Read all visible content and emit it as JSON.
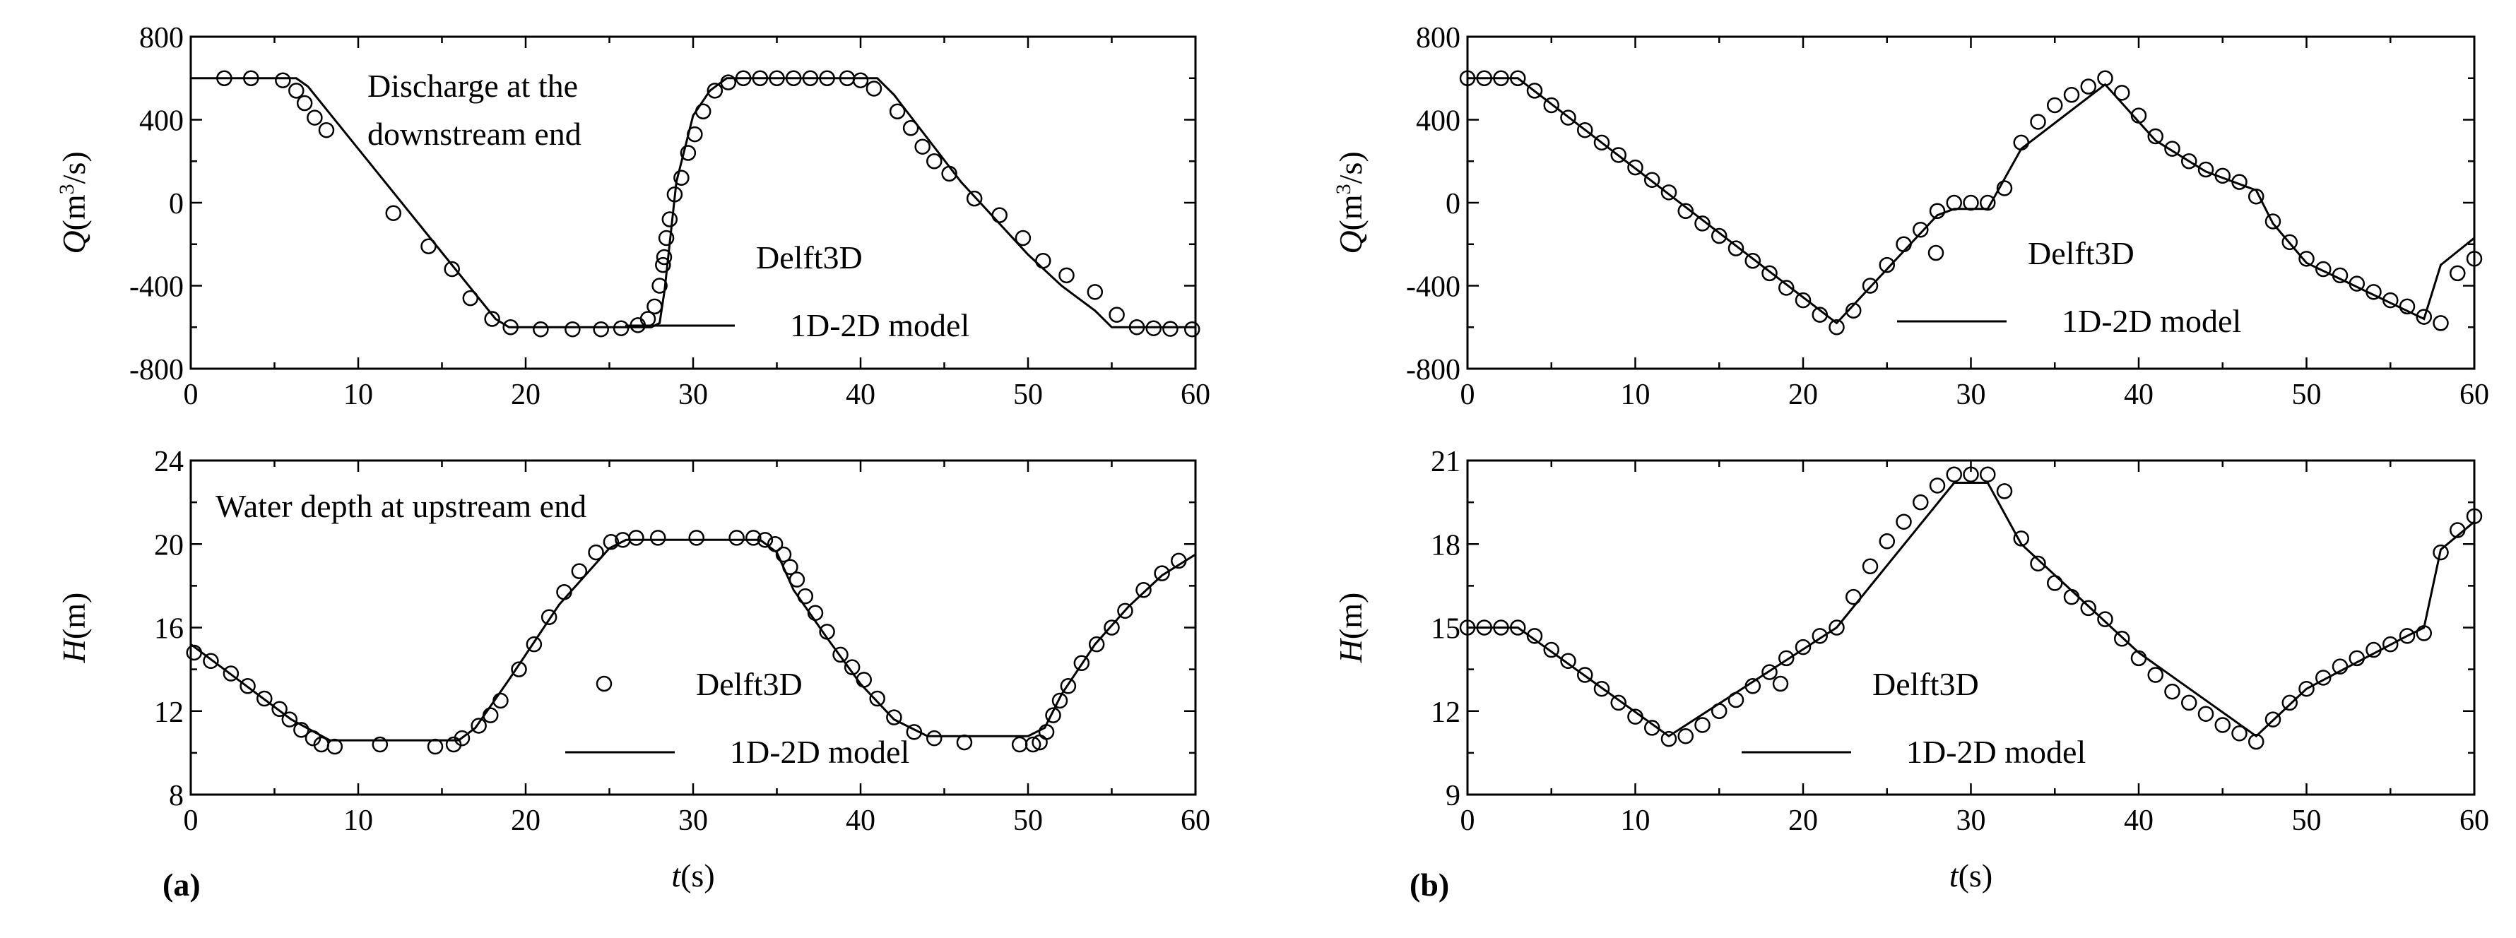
{
  "figure": {
    "panel_labels": [
      "(a)",
      "(b)"
    ],
    "x_axis_label": {
      "italic": "t",
      "rest": "(s)"
    },
    "marker_color": "#000000",
    "line_color": "#000000"
  },
  "chart_data": [
    {
      "id": "a-top",
      "type": "line",
      "ylabel": {
        "italic": "Q",
        "rest": "(m",
        "sup": "3",
        "tail": "/s)"
      },
      "xlabel": "",
      "xlim": [
        0,
        60
      ],
      "ylim": [
        -800,
        800
      ],
      "xticks": [
        0,
        10,
        20,
        30,
        40,
        50,
        60
      ],
      "yticks": [
        -800,
        -400,
        0,
        400,
        800
      ],
      "annotation": [
        "Discharge at the",
        "downstream end"
      ],
      "legend": {
        "placement": "center-right",
        "entries": [
          "Delft3D",
          "1D-2D model"
        ]
      },
      "series": [
        {
          "name": "Delft3D",
          "kind": "scatter",
          "x": [
            2,
            3.6,
            5.5,
            6.3,
            6.8,
            7.4,
            8.1,
            12.1,
            14.2,
            15.6,
            16.7,
            18,
            19.1,
            20.9,
            22.8,
            24.5,
            25.7,
            26.7,
            27.3,
            27.7,
            28,
            28.2,
            28.4,
            28.6,
            28.9,
            29.3,
            29.7,
            30.1,
            30.6,
            31.3,
            32.1,
            33,
            34,
            35,
            36,
            37,
            38,
            39.2,
            40,
            40.8,
            42.2,
            43,
            43.7,
            44.4,
            45.3,
            46.8,
            48.3,
            49.7,
            50.9,
            52.3,
            54,
            55.3,
            56.5,
            57.5,
            58.5,
            59.8
          ],
          "y": [
            600,
            600,
            590,
            540,
            480,
            410,
            350,
            -50,
            -210,
            -320,
            -460,
            -560,
            -600,
            -610,
            -610,
            -610,
            -605,
            -590,
            -560,
            -500,
            -400,
            -300,
            -170,
            -80,
            40,
            120,
            240,
            330,
            440,
            540,
            580,
            600,
            600,
            600,
            600,
            600,
            600,
            600,
            590,
            550,
            440,
            360,
            270,
            200,
            140,
            20,
            -60,
            -170,
            -280,
            -350,
            -430,
            -540,
            -600,
            -605,
            -608,
            -610
          ]
        },
        {
          "name": "1D-2D model",
          "kind": "line",
          "x": [
            0,
            6.3,
            7,
            18.2,
            19,
            27.5,
            28,
            28.3,
            29,
            30,
            31,
            32,
            34,
            41,
            42,
            46,
            50,
            52,
            54,
            55,
            60
          ],
          "y": [
            600,
            600,
            560,
            -560,
            -600,
            -600,
            -580,
            -420,
            100,
            420,
            540,
            600,
            600,
            600,
            520,
            100,
            -250,
            -400,
            -520,
            -600,
            -600
          ]
        }
      ]
    },
    {
      "id": "a-bottom",
      "type": "line",
      "ylabel": {
        "italic": "H",
        "rest": "(m)",
        "sup": "",
        "tail": ""
      },
      "xlabel": "t(s)",
      "xlim": [
        0,
        60
      ],
      "ylim": [
        8,
        24
      ],
      "xticks": [
        0,
        10,
        20,
        30,
        40,
        50,
        60
      ],
      "yticks": [
        8,
        12,
        16,
        20,
        24
      ],
      "annotation": [
        "Water depth at upstream end"
      ],
      "legend": {
        "placement": "center-right",
        "entries": [
          "Delft3D",
          "1D-2D model"
        ]
      },
      "series": [
        {
          "name": "Delft3D",
          "kind": "scatter",
          "x": [
            0.2,
            1.2,
            2.4,
            3.4,
            4.4,
            5.3,
            5.9,
            6.6,
            7.3,
            7.8,
            8.6,
            11.3,
            14.6,
            15.7,
            16.2,
            17.2,
            17.9,
            18.5,
            19.6,
            20.5,
            21.4,
            22.3,
            23.2,
            24.2,
            25.1,
            25.8,
            26.6,
            27.9,
            30.2,
            32.6,
            33.6,
            34.3,
            34.9,
            35.4,
            35.8,
            36.2,
            36.7,
            37.3,
            38,
            38.8,
            39.5,
            40.2,
            41,
            42,
            43.2,
            44.4,
            46.2,
            49.5,
            50.3,
            50.7,
            51.1,
            51.5,
            51.9,
            52.4,
            53.2,
            54.1,
            55,
            55.8,
            56.9,
            58,
            59
          ],
          "y": [
            14.8,
            14.4,
            13.8,
            13.2,
            12.6,
            12.1,
            11.6,
            11.1,
            10.7,
            10.4,
            10.3,
            10.4,
            10.3,
            10.4,
            10.7,
            11.3,
            11.8,
            12.5,
            14,
            15.2,
            16.5,
            17.7,
            18.7,
            19.6,
            20.1,
            20.2,
            20.3,
            20.3,
            20.3,
            20.3,
            20.3,
            20.2,
            20,
            19.5,
            18.9,
            18.3,
            17.5,
            16.7,
            15.8,
            14.7,
            14.1,
            13.5,
            12.6,
            11.7,
            11,
            10.7,
            10.5,
            10.4,
            10.4,
            10.5,
            11,
            11.8,
            12.5,
            13.2,
            14.3,
            15.2,
            16,
            16.8,
            17.8,
            18.6,
            19.2
          ]
        },
        {
          "name": "1D-2D model",
          "kind": "line",
          "x": [
            0,
            3,
            6,
            8.3,
            9,
            16,
            17,
            19,
            22,
            25,
            26,
            34,
            35,
            36,
            38,
            40,
            42,
            44,
            50,
            51,
            52,
            54,
            56,
            58,
            60
          ],
          "y": [
            15.2,
            13.4,
            11.6,
            10.6,
            10.6,
            10.6,
            11.2,
            13.5,
            17.1,
            19.8,
            20.2,
            20.2,
            19.6,
            17.8,
            15.5,
            13.3,
            11.6,
            10.8,
            10.8,
            11.2,
            12.8,
            15.2,
            17,
            18.5,
            19.5
          ]
        }
      ]
    },
    {
      "id": "b-top",
      "type": "line",
      "ylabel": {
        "italic": "Q",
        "rest": "(m",
        "sup": "3",
        "tail": "/s)"
      },
      "xlabel": "",
      "xlim": [
        0,
        60
      ],
      "ylim": [
        -800,
        800
      ],
      "xticks": [
        0,
        10,
        20,
        30,
        40,
        50,
        60
      ],
      "yticks": [
        -800,
        -400,
        0,
        400,
        800
      ],
      "annotation": [],
      "legend": {
        "placement": "center-right",
        "entries": [
          "Delft3D",
          "1D-2D model"
        ]
      },
      "series": [
        {
          "name": "Delft3D",
          "kind": "scatter",
          "x": [
            0,
            1,
            2,
            3,
            4,
            5,
            6,
            7,
            8,
            9,
            10,
            11,
            12,
            13,
            14,
            15,
            16,
            17,
            18,
            19,
            20,
            21,
            22,
            23,
            24,
            25,
            26,
            27,
            28,
            29,
            30,
            31,
            32,
            33,
            34,
            35,
            36,
            37,
            38,
            39,
            40,
            41,
            42,
            43,
            44,
            45,
            46,
            47,
            48,
            49,
            50,
            51,
            52,
            53,
            54,
            55,
            56,
            57,
            58,
            59,
            60
          ],
          "y": [
            600,
            600,
            600,
            600,
            540,
            470,
            410,
            350,
            290,
            230,
            170,
            110,
            50,
            -40,
            -100,
            -160,
            -220,
            -280,
            -340,
            -410,
            -470,
            -540,
            -600,
            -520,
            -400,
            -300,
            -200,
            -130,
            -40,
            0,
            0,
            0,
            70,
            290,
            390,
            470,
            520,
            560,
            600,
            530,
            420,
            320,
            260,
            200,
            160,
            130,
            100,
            30,
            -90,
            -190,
            -270,
            -320,
            -350,
            -390,
            -430,
            -470,
            -500,
            -550,
            -580,
            -340,
            -270
          ]
        },
        {
          "name": "1D-2D model",
          "kind": "line",
          "x": [
            0,
            3,
            22,
            28,
            29,
            31,
            33,
            38,
            41,
            44,
            47,
            48,
            50,
            57,
            58,
            60
          ],
          "y": [
            600,
            600,
            -580,
            -60,
            -30,
            -30,
            260,
            570,
            300,
            150,
            60,
            -100,
            -290,
            -560,
            -300,
            -170
          ]
        }
      ]
    },
    {
      "id": "b-bottom",
      "type": "line",
      "ylabel": {
        "italic": "H",
        "rest": "(m)",
        "sup": "",
        "tail": ""
      },
      "xlabel": "t(s)",
      "xlim": [
        0,
        60
      ],
      "ylim": [
        9,
        21
      ],
      "xticks": [
        0,
        10,
        20,
        30,
        40,
        50,
        60
      ],
      "yticks": [
        9,
        12,
        15,
        18,
        21
      ],
      "annotation": [],
      "legend": {
        "placement": "center-right",
        "entries": [
          "Delft3D",
          "1D-2D model"
        ]
      },
      "series": [
        {
          "name": "Delft3D",
          "kind": "scatter",
          "x": [
            0,
            1,
            2,
            3,
            4,
            5,
            6,
            7,
            8,
            9,
            10,
            11,
            12,
            13,
            14,
            15,
            16,
            17,
            18,
            19,
            20,
            21,
            22,
            23,
            24,
            25,
            26,
            27,
            28,
            29,
            30,
            31,
            32,
            33,
            34,
            35,
            36,
            37,
            38,
            39,
            40,
            41,
            42,
            43,
            44,
            45,
            46,
            47,
            48,
            49,
            50,
            51,
            52,
            53,
            54,
            55,
            56,
            57,
            58,
            59,
            60
          ],
          "y": [
            15,
            15,
            15,
            15,
            14.7,
            14.2,
            13.8,
            13.3,
            12.8,
            12.3,
            11.8,
            11.4,
            11,
            11.1,
            11.5,
            12,
            12.4,
            12.9,
            13.4,
            13.9,
            14.3,
            14.7,
            15,
            16.1,
            17.2,
            18.1,
            18.8,
            19.5,
            20.1,
            20.5,
            20.5,
            20.5,
            19.9,
            18.2,
            17.3,
            16.6,
            16.1,
            15.7,
            15.3,
            14.6,
            13.9,
            13.3,
            12.7,
            12.3,
            11.9,
            11.5,
            11.2,
            10.9,
            11.7,
            12.3,
            12.8,
            13.2,
            13.6,
            13.9,
            14.2,
            14.4,
            14.7,
            14.8,
            17.7,
            18.5,
            19
          ]
        },
        {
          "name": "1D-2D model",
          "kind": "line",
          "x": [
            0,
            3,
            12,
            22,
            29,
            31,
            33,
            40,
            47,
            50,
            56,
            57,
            58,
            60
          ],
          "y": [
            15,
            15,
            11.1,
            15,
            20.2,
            20.2,
            18,
            14.1,
            11.1,
            12.8,
            14.7,
            15,
            17.8,
            18.8
          ]
        }
      ]
    }
  ]
}
